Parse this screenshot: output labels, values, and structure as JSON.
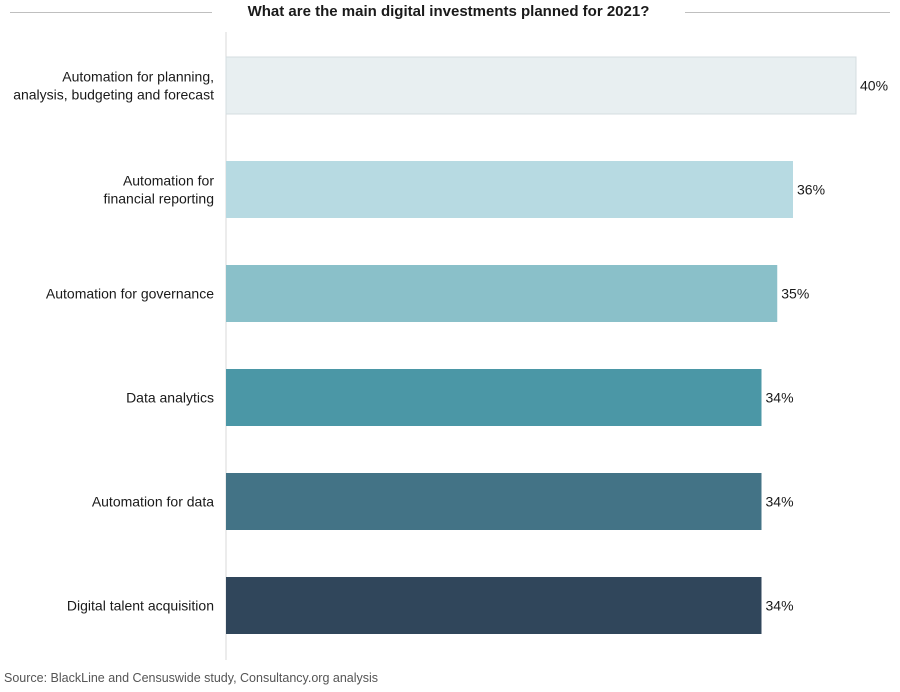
{
  "colors": {
    "bar_colors": [
      "#e8eff1",
      "#b7dae2",
      "#8ac0c9",
      "#4b97a6",
      "#437386",
      "#30465b"
    ],
    "bar_stroke": "#d4dde0",
    "axis_line": "#d9d9d9",
    "title_rule": "#bfbfbf",
    "source_text": "#555555"
  },
  "chart_data": {
    "type": "bar",
    "orientation": "horizontal",
    "title": "What are the main digital investments planned for 2021?",
    "categories": [
      [
        "Automation for planning,",
        "analysis, budgeting and forecast"
      ],
      [
        "Automation for",
        "financial reporting"
      ],
      [
        "Automation for governance"
      ],
      [
        "Data analytics"
      ],
      [
        "Automation for data"
      ],
      [
        "Digital talent acquisition"
      ]
    ],
    "values": [
      40,
      36,
      35,
      34,
      34,
      34
    ],
    "data_labels": [
      "40%",
      "36%",
      "35%",
      "34%",
      "34%",
      "34%"
    ],
    "xlim": [
      0,
      40
    ],
    "xlabel": "",
    "ylabel": "",
    "grid": false,
    "legend": "none"
  },
  "source": "Source: BlackLine and Censuswide study, Consultancy.org analysis"
}
